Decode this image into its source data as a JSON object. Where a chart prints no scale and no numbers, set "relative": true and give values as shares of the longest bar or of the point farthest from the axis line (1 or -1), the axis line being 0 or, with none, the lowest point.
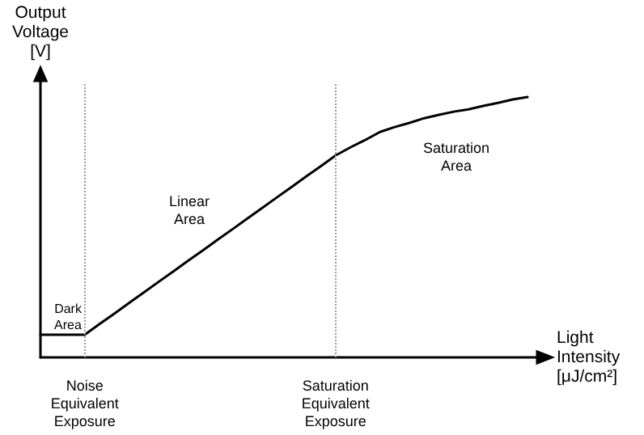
{
  "chart_data": {
    "type": "line",
    "relative": true,
    "xlabel": "Light Intensity [μJ/cm²]",
    "ylabel": "Output Voltage [V]",
    "marker": "none",
    "line_style": "solid",
    "categories": [
      null,
      null,
      null,
      "Noise Equivalent Exposure",
      null,
      null,
      null,
      null,
      null,
      null,
      null,
      null,
      null,
      null,
      null,
      null,
      null,
      null,
      null,
      null,
      "Saturation Equivalent Exposure",
      null,
      null,
      null,
      null,
      null,
      null,
      null,
      null,
      null,
      null,
      null,
      null,
      null
    ],
    "series": [
      {
        "color": "#000000",
        "values": [
          0.087,
          0.087,
          0.087,
          0.087,
          0.128,
          0.168,
          0.209,
          0.249,
          0.29,
          0.33,
          0.371,
          0.411,
          0.452,
          0.492,
          0.533,
          0.573,
          0.614,
          0.654,
          0.695,
          0.735,
          0.776,
          0.807,
          0.835,
          0.866,
          0.885,
          0.901,
          0.919,
          0.932,
          0.944,
          0.953,
          0.966,
          0.978,
          0.991,
          1
        ]
      }
    ],
    "ref_lines": [
      {
        "axis": "x",
        "value": "Noise Equivalent Exposure",
        "color": "#999999",
        "line_style": "dotted"
      },
      {
        "axis": "x",
        "value": "Saturation Equivalent Exposure",
        "color": "#999999",
        "line_style": "dotted"
      }
    ],
    "annotations": [
      "Dark Area",
      "Linear Area",
      "Saturation Area"
    ]
  }
}
